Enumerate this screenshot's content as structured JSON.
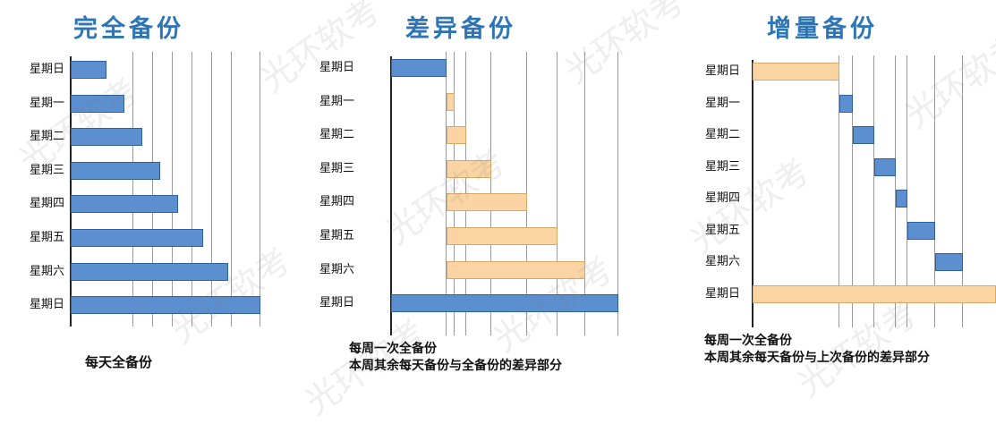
{
  "full": {
    "title": "完全备份",
    "caption": "每天全备份",
    "rows": [
      "星期日",
      "星期一",
      "星期二",
      "星期三",
      "星期四",
      "星期五",
      "星期六",
      "星期日"
    ],
    "bars": [
      {
        "start": 0,
        "end": 1,
        "color": "blue"
      },
      {
        "start": 0,
        "end": 1.5,
        "color": "blue"
      },
      {
        "start": 0,
        "end": 2,
        "color": "blue"
      },
      {
        "start": 0,
        "end": 2.5,
        "color": "blue"
      },
      {
        "start": 0,
        "end": 3,
        "color": "blue"
      },
      {
        "start": 0,
        "end": 3.7,
        "color": "blue"
      },
      {
        "start": 0,
        "end": 4.4,
        "color": "blue"
      },
      {
        "start": 0,
        "end": 5.3,
        "color": "blue"
      }
    ]
  },
  "diff": {
    "title": "差异备份",
    "caption_lines": [
      "每周一次全备份",
      "本周其余每天备份与全备份的差异部分"
    ],
    "rows": [
      "星期日",
      "星期一",
      "星期二",
      "星期三",
      "星期四",
      "星期五",
      "星期六",
      "星期日"
    ],
    "bars": [
      {
        "start": 0,
        "end": 1,
        "color": "blue"
      },
      {
        "start": 1,
        "end": 1.15,
        "color": "orange"
      },
      {
        "start": 1,
        "end": 1.35,
        "color": "orange"
      },
      {
        "start": 1,
        "end": 1.8,
        "color": "orange"
      },
      {
        "start": 1,
        "end": 2.45,
        "color": "orange"
      },
      {
        "start": 1,
        "end": 3,
        "color": "orange"
      },
      {
        "start": 1,
        "end": 3.5,
        "color": "orange"
      },
      {
        "start": 0,
        "end": 4.1,
        "color": "blue"
      }
    ]
  },
  "incr": {
    "title": "增量备份",
    "caption_lines": [
      "每周一次全备份",
      "本周其余每天备份与上次备份的差异部分"
    ],
    "rows": [
      "星期日",
      "星期一",
      "星期二",
      "星期三",
      "星期四",
      "星期五",
      "星期六",
      "星期日"
    ],
    "bars": [
      {
        "start": 0,
        "end": 1,
        "color": "orange"
      },
      {
        "start": 1,
        "end": 1.15,
        "color": "blue"
      },
      {
        "start": 1.15,
        "end": 1.4,
        "color": "blue"
      },
      {
        "start": 1.4,
        "end": 1.65,
        "color": "blue"
      },
      {
        "start": 1.65,
        "end": 1.78,
        "color": "blue"
      },
      {
        "start": 1.78,
        "end": 2.1,
        "color": "blue"
      },
      {
        "start": 2.1,
        "end": 2.42,
        "color": "blue"
      },
      {
        "start": 0,
        "end": 2.8,
        "color": "orange"
      }
    ]
  },
  "colors": {
    "blue": "#5b8fd0",
    "orange": "#fad4a3",
    "title": "#2e75b6"
  },
  "watermark": "光环软考"
}
